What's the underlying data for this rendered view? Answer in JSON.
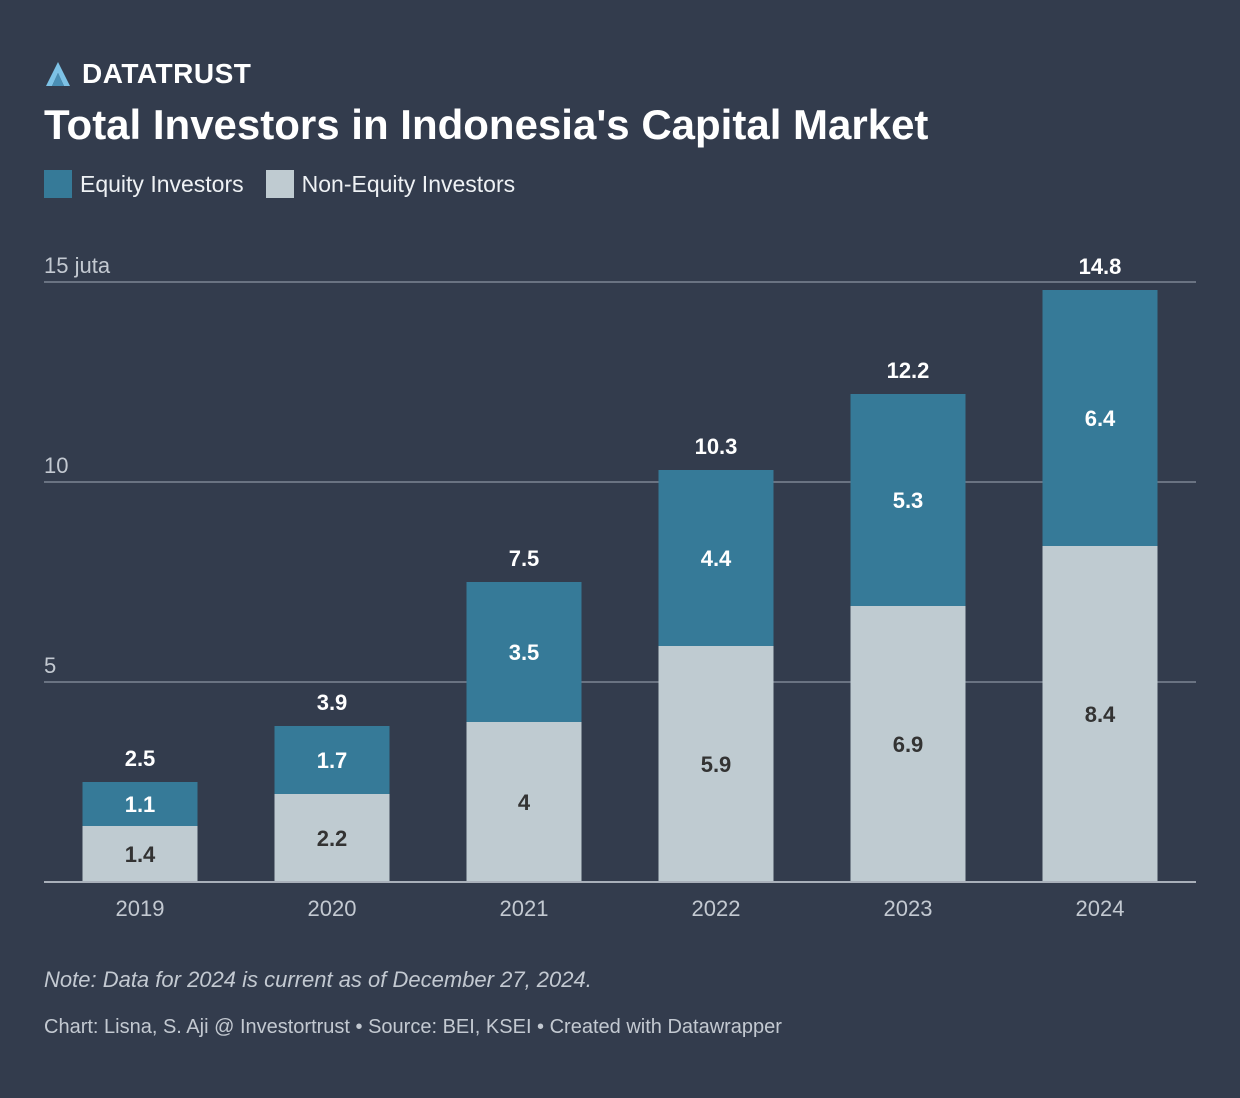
{
  "brand": {
    "logo_icon": "datatrust-logo-icon",
    "name": "DATATRUST"
  },
  "chart_data": {
    "type": "bar",
    "stacked": true,
    "title": "Total Investors in Indonesia's Capital Market",
    "categories": [
      "2019",
      "2020",
      "2021",
      "2022",
      "2023",
      "2024"
    ],
    "series": [
      {
        "name": "Non-Equity Investors",
        "values": [
          1.4,
          2.2,
          4,
          5.9,
          6.9,
          8.4
        ],
        "color": "#bfcbd1",
        "label_color": "#333333"
      },
      {
        "name": "Equity Investors",
        "values": [
          1.1,
          1.7,
          3.5,
          4.4,
          5.3,
          6.4
        ],
        "color": "#367a98",
        "label_color": "#ffffff"
      }
    ],
    "totals": [
      2.5,
      3.9,
      7.5,
      10.3,
      12.2,
      14.8
    ],
    "ylim": [
      0,
      15
    ],
    "yticks": [
      {
        "value": 5,
        "label": "5"
      },
      {
        "value": 10,
        "label": "10"
      },
      {
        "value": 15,
        "label": "15 juta"
      }
    ],
    "grid": true,
    "legend_position": "top-left",
    "xlabel": "",
    "ylabel": ""
  },
  "note": "Note: Data for 2024 is current as of December 27, 2024.",
  "credit": "Chart: Lisna, S. Aji @ Investortrust • Source: BEI, KSEI • Created with Datawrapper",
  "colors": {
    "background": "#333c4d",
    "equity": "#367a98",
    "non_equity": "#bfcbd1",
    "gridline": "#7d8593",
    "tick_text": "#c3c9d1",
    "logo_light": "#7dc2e6",
    "logo_dark": "#4a8fb5"
  }
}
